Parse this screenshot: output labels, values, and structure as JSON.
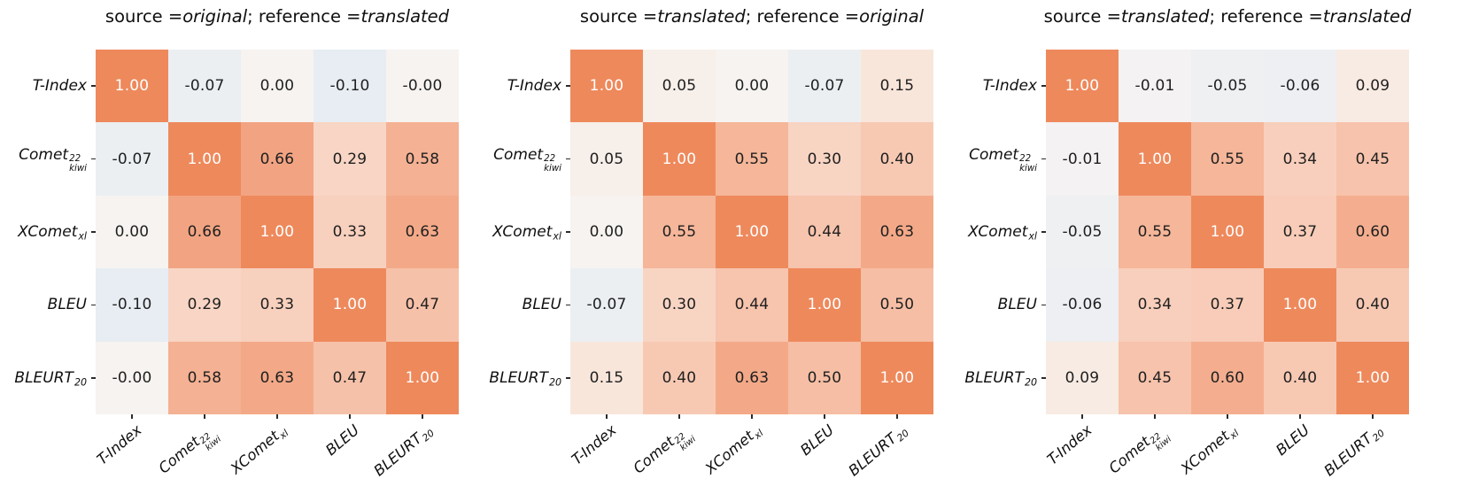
{
  "figure": {
    "background": "#ffffff",
    "kind": "correlation-heatmap-facets",
    "facet_count": 3
  },
  "title_format": {
    "source_prefix": "source = ",
    "reference_prefix": "; reference = "
  },
  "metric_labels": [
    {
      "base": "T-Index",
      "sup": "",
      "sub": ""
    },
    {
      "base": "Comet",
      "sup": "22",
      "sub": "kiwi"
    },
    {
      "base": "XComet",
      "sup": "",
      "sub": "xl"
    },
    {
      "base": "BLEU",
      "sup": "",
      "sub": ""
    },
    {
      "base": "BLEURT",
      "sup": "",
      "sub": "20"
    }
  ],
  "chart_data": [
    {
      "type": "heatmap",
      "title": "source = original; reference = translated",
      "source": "original",
      "reference": "translated",
      "categories": [
        "T-Index",
        "Comet^{22}_{kiwi}",
        "XComet_{xl}",
        "BLEU",
        "BLEURT_{20}"
      ],
      "values": [
        [
          "1.00",
          "-0.07",
          "0.00",
          "-0.10",
          "-0.00"
        ],
        [
          "-0.07",
          "1.00",
          "0.66",
          "0.29",
          "0.58"
        ],
        [
          "0.00",
          "0.66",
          "1.00",
          "0.33",
          "0.63"
        ],
        [
          "-0.10",
          "0.29",
          "0.33",
          "1.00",
          "0.47"
        ],
        [
          "-0.00",
          "0.58",
          "0.63",
          "0.47",
          "1.00"
        ]
      ]
    },
    {
      "type": "heatmap",
      "title": "source = translated; reference = original",
      "source": "translated",
      "reference": "original",
      "categories": [
        "T-Index",
        "Comet^{22}_{kiwi}",
        "XComet_{xl}",
        "BLEU",
        "BLEURT_{20}"
      ],
      "values": [
        [
          "1.00",
          "0.05",
          "0.00",
          "-0.07",
          "0.15"
        ],
        [
          "0.05",
          "1.00",
          "0.55",
          "0.30",
          "0.40"
        ],
        [
          "0.00",
          "0.55",
          "1.00",
          "0.44",
          "0.63"
        ],
        [
          "-0.07",
          "0.30",
          "0.44",
          "1.00",
          "0.50"
        ],
        [
          "0.15",
          "0.40",
          "0.63",
          "0.50",
          "1.00"
        ]
      ]
    },
    {
      "type": "heatmap",
      "title": "source = translated; reference = translated",
      "source": "translated",
      "reference": "translated",
      "categories": [
        "T-Index",
        "Comet^{22}_{kiwi}",
        "XComet_{xl}",
        "BLEU",
        "BLEURT_{20}"
      ],
      "values": [
        [
          "1.00",
          "-0.01",
          "-0.05",
          "-0.06",
          "0.09"
        ],
        [
          "-0.01",
          "1.00",
          "0.55",
          "0.34",
          "0.45"
        ],
        [
          "-0.05",
          "0.55",
          "1.00",
          "0.37",
          "0.60"
        ],
        [
          "-0.06",
          "0.34",
          "0.37",
          "1.00",
          "0.40"
        ],
        [
          "0.09",
          "0.45",
          "0.60",
          "0.40",
          "1.00"
        ]
      ]
    }
  ],
  "colormap": {
    "type": "diverging",
    "vmin": -1,
    "vmax": 1,
    "center_color": "#f6f3f0",
    "positive_end_color": "#ee895c",
    "negative_shown_color": "#e7edf2",
    "annot_dark": "#1f1f1f",
    "annot_light": "#ffffff",
    "tick_color": "#2b2b2b",
    "text_color": "#0f0f0f"
  }
}
